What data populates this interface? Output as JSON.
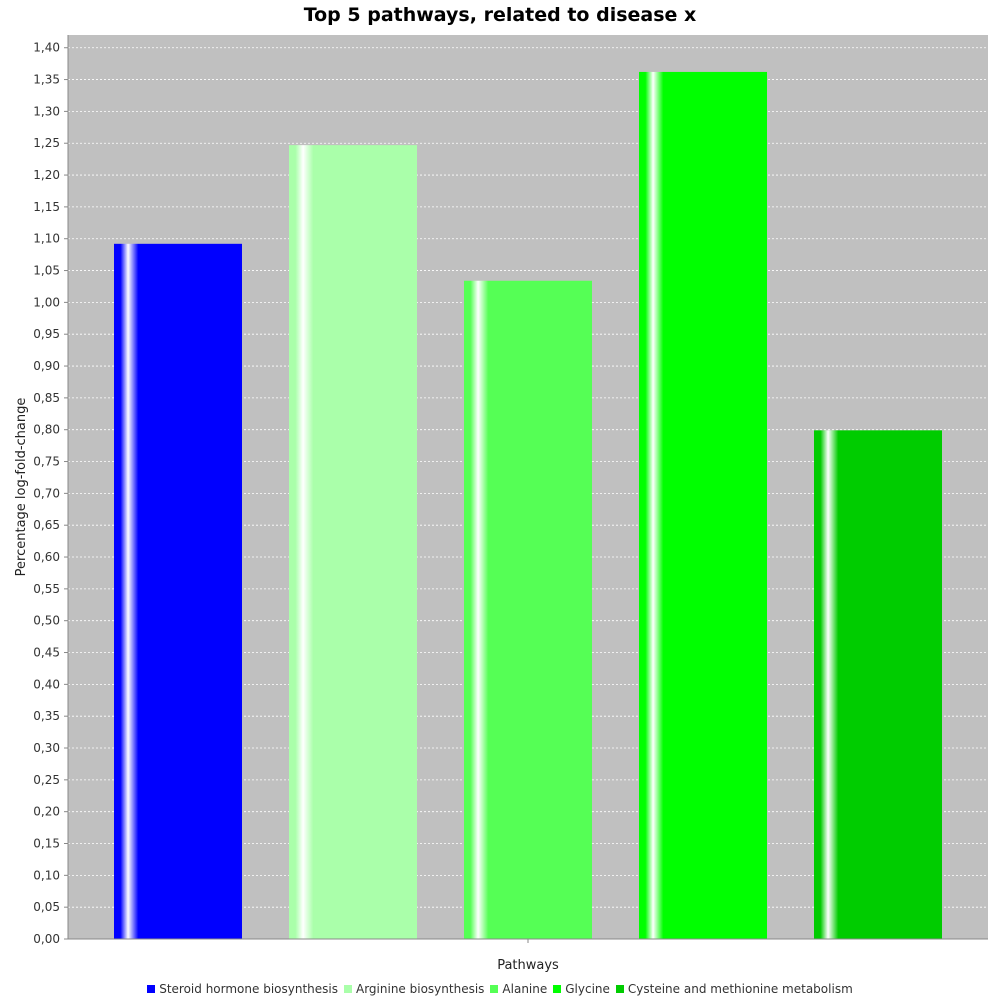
{
  "chart_data": {
    "type": "bar",
    "title": "Top 5 pathways, related to disease x",
    "xlabel": "Pathways",
    "ylabel": "Percentage log-fold-change",
    "ylim": [
      0,
      1.42
    ],
    "ytick_step": 0.05,
    "decimal_separator": ",",
    "grid": true,
    "legend_position": "bottom",
    "series": [
      {
        "name": "Steroid hormone biosynthesis",
        "value": 1.092,
        "color": "#0000ff"
      },
      {
        "name": "Arginine biosynthesis",
        "value": 1.247,
        "color": "#aaffaa"
      },
      {
        "name": "Alanine",
        "value": 1.034,
        "color": "#55ff55"
      },
      {
        "name": "Glycine",
        "value": 1.362,
        "color": "#00ff00"
      },
      {
        "name": "Cysteine and methionine metabolism",
        "value": 0.799,
        "color": "#00cc00"
      }
    ]
  },
  "colors": {
    "plot_background": "#c0c0c0",
    "gridline": "#ffffff"
  }
}
